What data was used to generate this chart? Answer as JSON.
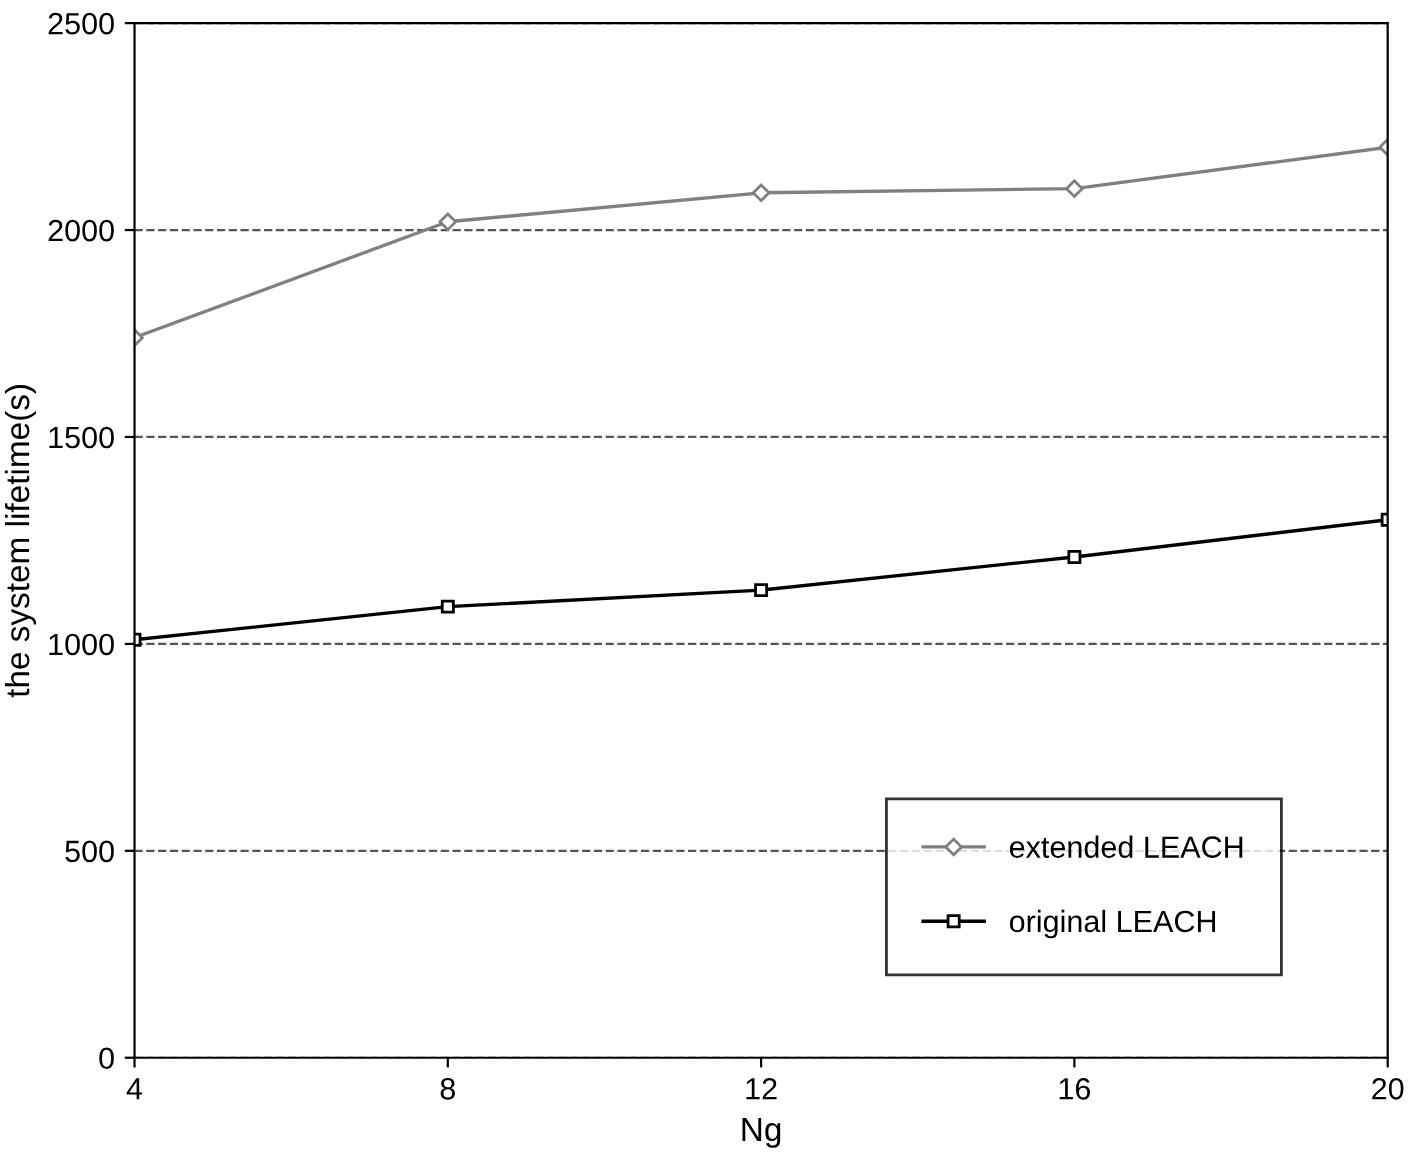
{
  "chart_data": {
    "type": "line",
    "xlabel": "Ng",
    "ylabel": "the system lifetime(s)",
    "x": [
      4,
      8,
      12,
      16,
      20
    ],
    "series": [
      {
        "name": "extended LEACH",
        "color": "#808080",
        "marker": "diamond",
        "values": [
          1740,
          2020,
          2090,
          2100,
          2200
        ]
      },
      {
        "name": "original LEACH",
        "color": "#000000",
        "marker": "square",
        "values": [
          1010,
          1090,
          1130,
          1210,
          1300
        ]
      }
    ],
    "xlim": [
      4,
      20
    ],
    "xticks": [
      4,
      8,
      12,
      16,
      20
    ],
    "ylim": [
      0,
      2500
    ],
    "yticks": [
      0,
      500,
      1000,
      1500,
      2000,
      2500
    ],
    "grid": "y",
    "legend": "bottom right",
    "line_style": "solid"
  }
}
